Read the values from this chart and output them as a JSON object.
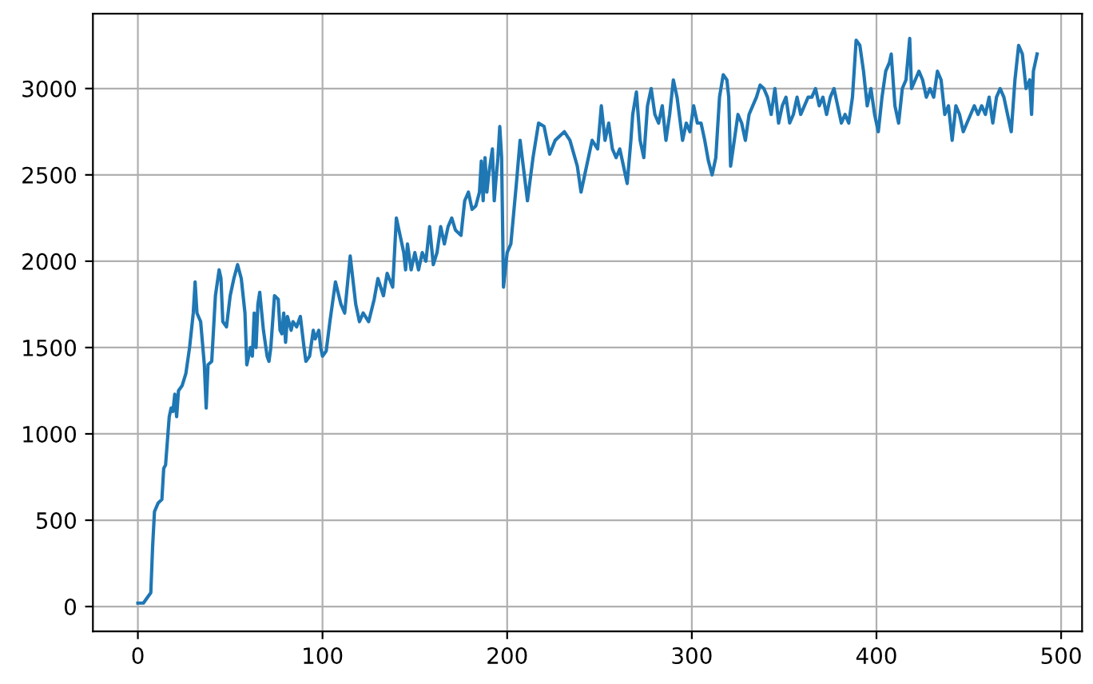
{
  "chart_data": {
    "type": "line",
    "xlim": [
      -24.35,
      511.35
    ],
    "ylim": [
      -143.5,
      3433.5
    ],
    "xticks": [
      0,
      100,
      200,
      300,
      400,
      500
    ],
    "yticks": [
      0,
      500,
      1000,
      1500,
      2000,
      2500,
      3000
    ],
    "grid": true,
    "series": [
      {
        "color": "#1f77b4",
        "x": [
          0,
          3,
          7,
          8,
          9,
          11,
          13,
          14,
          15,
          17,
          18,
          19,
          20,
          21,
          22,
          24,
          26,
          28,
          30,
          31,
          32,
          34,
          36,
          37,
          38,
          40,
          42,
          44,
          45,
          46,
          48,
          50,
          52,
          54,
          56,
          58,
          59,
          60,
          61,
          62,
          63,
          64,
          65,
          66,
          68,
          70,
          71,
          72,
          74,
          76,
          77,
          78,
          79,
          80,
          81,
          83,
          84,
          86,
          88,
          90,
          91,
          93,
          95,
          96,
          98,
          99,
          100,
          102,
          104,
          107,
          110,
          112,
          115,
          118,
          120,
          122,
          125,
          128,
          130,
          133,
          135,
          138,
          140,
          142,
          144,
          145,
          146,
          148,
          150,
          152,
          154,
          156,
          158,
          160,
          162,
          164,
          166,
          168,
          170,
          172,
          175,
          177,
          179,
          181,
          183,
          185,
          186,
          187,
          188,
          189,
          190,
          192,
          193,
          194,
          195,
          196,
          197,
          198,
          200,
          202,
          205,
          207,
          211,
          214,
          217,
          220,
          223,
          226,
          231,
          234,
          238,
          240,
          243,
          246,
          249,
          251,
          253,
          255,
          257,
          259,
          261,
          263,
          265,
          267,
          268,
          270,
          272,
          274,
          276,
          278,
          280,
          282,
          284,
          286,
          288,
          290,
          292,
          295,
          297,
          299,
          301,
          303,
          305,
          307,
          309,
          311,
          313,
          315,
          317,
          319,
          320,
          321,
          323,
          325,
          327,
          329,
          331,
          333,
          335,
          337,
          339,
          341,
          343,
          345,
          347,
          349,
          351,
          353,
          355,
          357,
          359,
          361,
          363,
          365,
          367,
          369,
          371,
          373,
          375,
          377,
          379,
          381,
          383,
          385,
          387,
          389,
          391,
          393,
          395,
          397,
          399,
          401,
          403,
          405,
          407,
          408,
          410,
          412,
          414,
          416,
          418,
          419,
          421,
          423,
          425,
          427,
          429,
          431,
          433,
          435,
          437,
          439,
          441,
          443,
          445,
          447,
          449,
          451,
          453,
          455,
          457,
          459,
          461,
          463,
          465,
          467,
          469,
          471,
          473,
          475,
          477,
          479,
          481,
          483,
          484,
          485,
          487
        ],
        "values": [
          20,
          20,
          80,
          350,
          550,
          600,
          620,
          800,
          820,
          1100,
          1150,
          1130,
          1230,
          1100,
          1250,
          1280,
          1350,
          1500,
          1700,
          1880,
          1700,
          1650,
          1400,
          1150,
          1400,
          1420,
          1800,
          1950,
          1900,
          1650,
          1620,
          1800,
          1900,
          1980,
          1900,
          1700,
          1400,
          1450,
          1500,
          1450,
          1700,
          1500,
          1750,
          1820,
          1600,
          1450,
          1420,
          1500,
          1800,
          1780,
          1600,
          1580,
          1700,
          1530,
          1680,
          1600,
          1650,
          1620,
          1680,
          1500,
          1420,
          1450,
          1600,
          1550,
          1600,
          1500,
          1450,
          1480,
          1650,
          1880,
          1750,
          1700,
          2030,
          1750,
          1650,
          1700,
          1650,
          1780,
          1900,
          1800,
          1930,
          1850,
          2250,
          2150,
          2050,
          1950,
          2100,
          1950,
          2050,
          1950,
          2050,
          2000,
          2200,
          1980,
          2050,
          2200,
          2100,
          2200,
          2250,
          2180,
          2150,
          2350,
          2400,
          2300,
          2320,
          2400,
          2580,
          2350,
          2600,
          2400,
          2500,
          2650,
          2350,
          2480,
          2600,
          2780,
          2600,
          1850,
          2050,
          2100,
          2450,
          2700,
          2350,
          2600,
          2800,
          2780,
          2620,
          2700,
          2750,
          2700,
          2550,
          2400,
          2550,
          2700,
          2650,
          2900,
          2700,
          2800,
          2650,
          2600,
          2650,
          2550,
          2450,
          2700,
          2850,
          2980,
          2700,
          2600,
          2900,
          3000,
          2850,
          2800,
          2900,
          2700,
          2850,
          3050,
          2950,
          2700,
          2800,
          2750,
          2900,
          2800,
          2800,
          2700,
          2580,
          2500,
          2600,
          2950,
          3080,
          3050,
          2950,
          2550,
          2700,
          2850,
          2800,
          2700,
          2850,
          2900,
          2950,
          3020,
          3000,
          2950,
          2850,
          3000,
          2800,
          2900,
          2950,
          2800,
          2850,
          2950,
          2850,
          2900,
          2950,
          2950,
          3000,
          2900,
          2950,
          2850,
          2950,
          3000,
          2900,
          2800,
          2850,
          2800,
          2950,
          3280,
          3250,
          3100,
          2900,
          3000,
          2850,
          2750,
          2950,
          3100,
          3150,
          3200,
          2900,
          2800,
          3000,
          3050,
          3290,
          3000,
          3050,
          3100,
          3050,
          2950,
          3000,
          2950,
          3100,
          3050,
          2850,
          2900,
          2700,
          2900,
          2850,
          2750,
          2800,
          2850,
          2900,
          2850,
          2900,
          2850,
          2950,
          2800,
          2950,
          3000,
          2950,
          2850,
          2750,
          3050,
          3250,
          3200,
          3000,
          3050,
          2850,
          3100,
          3200
        ]
      }
    ]
  }
}
